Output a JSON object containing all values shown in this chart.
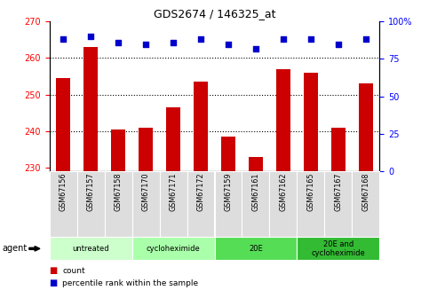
{
  "title": "GDS2674 / 146325_at",
  "samples": [
    "GSM67156",
    "GSM67157",
    "GSM67158",
    "GSM67170",
    "GSM67171",
    "GSM67172",
    "GSM67159",
    "GSM67161",
    "GSM67162",
    "GSM67165",
    "GSM67167",
    "GSM67168"
  ],
  "bar_values": [
    254.5,
    263.0,
    240.5,
    241.0,
    246.5,
    253.5,
    238.5,
    233.0,
    257.0,
    256.0,
    241.0,
    253.0
  ],
  "percentile_values": [
    88,
    90,
    86,
    85,
    86,
    88,
    85,
    82,
    88,
    88,
    85,
    88
  ],
  "bar_color": "#cc0000",
  "dot_color": "#0000cc",
  "ylim_left": [
    229,
    270
  ],
  "ylim_right": [
    0,
    100
  ],
  "yticks_left": [
    230,
    240,
    250,
    260,
    270
  ],
  "yticks_right": [
    0,
    25,
    50,
    75,
    100
  ],
  "ytick_labels_right": [
    "0",
    "25",
    "50",
    "75",
    "100%"
  ],
  "grid_values": [
    240,
    250,
    260
  ],
  "groups": [
    {
      "label": "untreated",
      "start": 0,
      "end": 3,
      "color": "#ccffcc"
    },
    {
      "label": "cycloheximide",
      "start": 3,
      "end": 6,
      "color": "#aaffaa"
    },
    {
      "label": "20E",
      "start": 6,
      "end": 9,
      "color": "#55dd55"
    },
    {
      "label": "20E and\ncycloheximide",
      "start": 9,
      "end": 12,
      "color": "#33bb33"
    }
  ],
  "cell_bg_color": "#dddddd",
  "background_color": "#ffffff",
  "agent_label": "agent"
}
